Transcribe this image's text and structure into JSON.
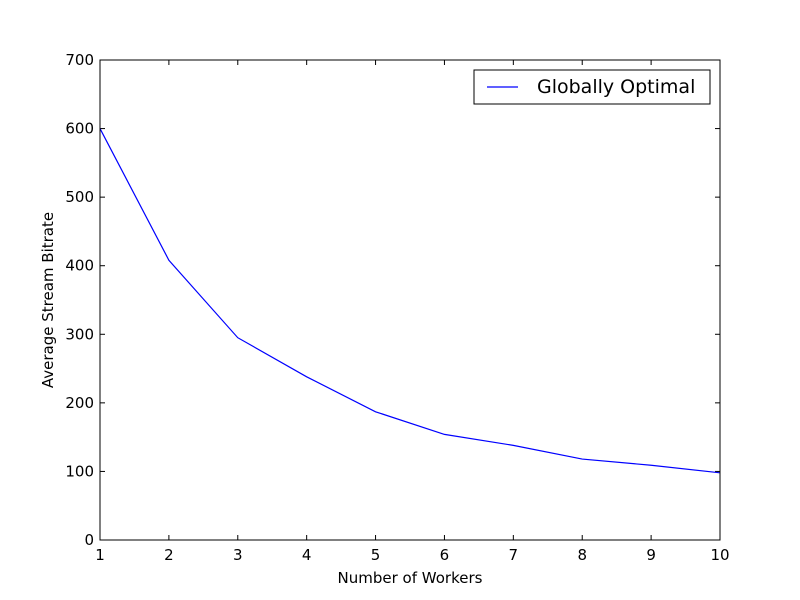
{
  "chart_data": {
    "type": "line",
    "title": "",
    "xlabel": "Number of Workers",
    "ylabel": "Average Stream Bitrate",
    "xlim": [
      1,
      10
    ],
    "ylim": [
      0,
      700
    ],
    "x_ticks": [
      1,
      2,
      3,
      4,
      5,
      6,
      7,
      8,
      9,
      10
    ],
    "y_ticks": [
      0,
      100,
      200,
      300,
      400,
      500,
      600,
      700
    ],
    "grid": false,
    "legend_position": "top-right",
    "series": [
      {
        "name": "Globally Optimal",
        "color": "#0000ff",
        "x": [
          1,
          2,
          3,
          4,
          5,
          6,
          7,
          8,
          9,
          10
        ],
        "y": [
          600,
          408,
          295,
          238,
          187,
          154,
          138,
          118,
          109,
          98
        ]
      }
    ]
  }
}
